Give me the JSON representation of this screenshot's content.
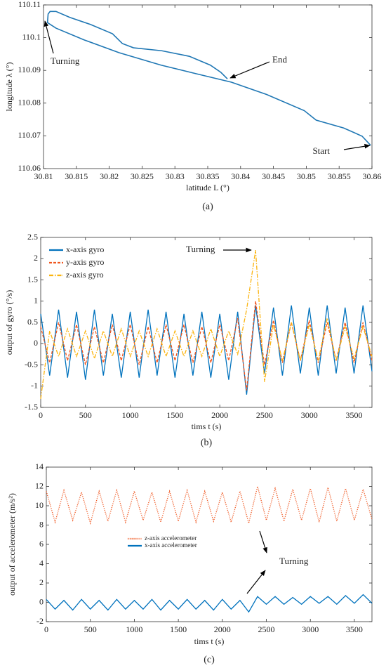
{
  "chart_data": [
    {
      "type": "line",
      "x": [
        30.8598,
        30.8585,
        30.8557,
        30.8515,
        30.8497,
        30.844,
        30.8386,
        30.8332,
        30.8279,
        30.8215,
        30.8162,
        30.8119,
        30.8106,
        30.8107,
        30.811,
        30.8119,
        30.814,
        30.8172,
        30.8205,
        30.822,
        30.8237,
        30.828,
        30.8322,
        30.8354,
        30.837,
        30.838
      ],
      "values": [
        110.0671,
        110.0699,
        110.0724,
        110.0748,
        110.0777,
        110.0826,
        110.0864,
        110.089,
        110.0916,
        110.0954,
        110.0993,
        110.1029,
        110.1046,
        110.1072,
        110.108,
        110.108,
        110.1062,
        110.104,
        110.1012,
        110.0982,
        110.0969,
        110.096,
        110.0943,
        110.0916,
        110.0894,
        110.0874
      ],
      "color": "#1f77b4",
      "xlabel": "latitude L (°)",
      "ylabel": "longitude λ (°)",
      "xlim": [
        30.81,
        30.86
      ],
      "xticks": [
        30.81,
        30.815,
        30.82,
        30.825,
        30.83,
        30.835,
        30.84,
        30.845,
        30.85,
        30.855,
        30.86
      ],
      "ylim": [
        110.06,
        110.11
      ],
      "yticks": [
        110.06,
        110.07,
        110.08,
        110.09,
        110.1,
        110.11
      ],
      "annotations": [
        "Turning",
        "End",
        "Start"
      ],
      "caption": "(a)"
    },
    {
      "type": "line",
      "x": [
        0,
        100,
        200,
        300,
        400,
        500,
        600,
        700,
        800,
        900,
        1000,
        1100,
        1200,
        1300,
        1400,
        1500,
        1600,
        1700,
        1800,
        1900,
        2000,
        2100,
        2200,
        2300,
        2400,
        2500,
        2600,
        2700,
        2800,
        2900,
        3000,
        3100,
        3200,
        3300,
        3400,
        3500,
        3600,
        3700
      ],
      "series": [
        {
          "name": "x-axis gyro",
          "color": "#0072bd",
          "linestyle": "solid",
          "values": [
            0.7,
            -0.75,
            0.8,
            -0.8,
            0.75,
            -0.85,
            0.8,
            -0.75,
            0.7,
            -0.8,
            0.75,
            -0.8,
            0.8,
            -0.75,
            0.75,
            -0.8,
            0.7,
            -0.75,
            0.75,
            -0.8,
            0.7,
            -0.85,
            0.75,
            -1.2,
            0.9,
            -0.7,
            0.85,
            -0.75,
            0.9,
            -0.7,
            0.85,
            -0.75,
            0.9,
            -0.7,
            0.85,
            -0.7,
            0.9,
            -0.65
          ]
        },
        {
          "name": "y-axis gyro",
          "color": "#f0561f",
          "linestyle": "dashed",
          "values": [
            0.4,
            -0.45,
            0.5,
            -0.4,
            0.45,
            -0.5,
            0.4,
            -0.45,
            0.45,
            -0.4,
            0.45,
            -0.5,
            0.4,
            -0.45,
            0.45,
            -0.4,
            0.45,
            -0.45,
            0.4,
            -0.45,
            0.45,
            -0.4,
            0.6,
            -1.1,
            1.0,
            -0.5,
            0.55,
            -0.45,
            0.5,
            -0.4,
            0.55,
            -0.45,
            0.5,
            -0.4,
            0.5,
            -0.45,
            0.5,
            -0.4
          ]
        },
        {
          "name": "z-axis gyro",
          "color": "#fbb40f",
          "linestyle": "dashdot",
          "values": [
            -1.3,
            0.3,
            -0.3,
            0.35,
            -0.3,
            0.3,
            -0.35,
            0.3,
            -0.3,
            0.35,
            -0.3,
            0.3,
            -0.3,
            0.35,
            -0.3,
            0.3,
            -0.3,
            0.3,
            -0.3,
            0.35,
            -0.3,
            0.3,
            -0.25,
            0.8,
            2.2,
            -0.9,
            0.45,
            -0.4,
            0.5,
            -0.4,
            0.45,
            -0.4,
            0.6,
            -0.4,
            0.4,
            -0.35,
            0.4,
            -0.3
          ]
        }
      ],
      "xlabel": "tims t (s)",
      "ylabel": "output of gyro (°/s)",
      "xlim": [
        0,
        3700
      ],
      "xticks": [
        0,
        500,
        1000,
        1500,
        2000,
        2500,
        3000,
        3500
      ],
      "ylim": [
        -1.5,
        2.5
      ],
      "yticks": [
        -1.5,
        -1,
        -0.5,
        0,
        0.5,
        1,
        1.5,
        2,
        2.5
      ],
      "legend": "upper left",
      "annotations": [
        "Turning"
      ],
      "caption": "(b)"
    },
    {
      "type": "line",
      "x": [
        0,
        100,
        200,
        300,
        400,
        500,
        600,
        700,
        800,
        900,
        1000,
        1100,
        1200,
        1300,
        1400,
        1500,
        1600,
        1700,
        1800,
        1900,
        2000,
        2100,
        2200,
        2300,
        2400,
        2500,
        2600,
        2700,
        2800,
        2900,
        3000,
        3100,
        3200,
        3300,
        3400,
        3500,
        3600,
        3700
      ],
      "series": [
        {
          "name": "z-axis accelerometer",
          "color": "#f0561f",
          "linestyle": "dotted",
          "values": [
            11.5,
            8.3,
            11.6,
            8.5,
            11.4,
            8.2,
            11.5,
            8.4,
            11.6,
            8.3,
            11.5,
            8.5,
            11.4,
            8.3,
            11.5,
            8.4,
            11.6,
            8.3,
            11.5,
            8.4,
            11.4,
            8.3,
            11.5,
            8.2,
            12.0,
            8.5,
            11.8,
            8.4,
            11.7,
            8.5,
            11.8,
            8.3,
            11.9,
            8.4,
            11.8,
            8.5,
            11.7,
            8.6
          ]
        },
        {
          "name": "x-axis accelerometer",
          "color": "#0072bd",
          "linestyle": "solid",
          "values": [
            0.3,
            -0.7,
            0.2,
            -0.8,
            0.3,
            -0.7,
            0.2,
            -0.8,
            0.3,
            -0.7,
            0.2,
            -0.7,
            0.3,
            -0.8,
            0.2,
            -0.7,
            0.3,
            -0.7,
            0.2,
            -0.8,
            0.3,
            -0.7,
            0.2,
            -1.0,
            0.6,
            -0.2,
            0.6,
            -0.2,
            0.5,
            -0.2,
            0.6,
            -0.1,
            0.6,
            -0.2,
            0.7,
            -0.1,
            0.8,
            -0.1
          ]
        }
      ],
      "xlabel": "tims t (s)",
      "ylabel": "output of accelerometer (m/s²)",
      "xlim": [
        0,
        3700
      ],
      "xticks": [
        0,
        500,
        1000,
        1500,
        2000,
        2500,
        3000,
        3500
      ],
      "ylim": [
        -2,
        14
      ],
      "yticks": [
        -2,
        0,
        2,
        4,
        6,
        8,
        10,
        12,
        14
      ],
      "legend": "center left",
      "annotations": [
        "Turning"
      ],
      "caption": "(c)"
    }
  ]
}
